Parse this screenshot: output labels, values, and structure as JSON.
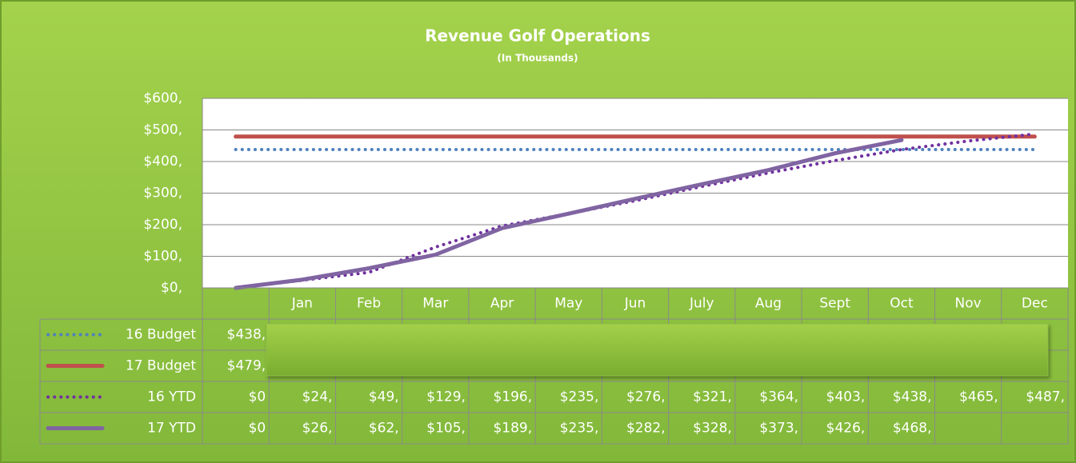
{
  "chart_data": {
    "type": "line",
    "title": "Revenue Golf Operations",
    "subtitle": "(In Thousands)",
    "categories": [
      null,
      "Jan",
      "Feb",
      "Mar",
      "Apr",
      "May",
      "Jun",
      "July",
      "Aug",
      "Sept",
      "Oct",
      "Nov",
      "Dec"
    ],
    "ylim": [
      0,
      600
    ],
    "yticks": [
      {
        "value": 0,
        "label": "$0,"
      },
      {
        "value": 100,
        "label": "$100,"
      },
      {
        "value": 200,
        "label": "$200,"
      },
      {
        "value": 300,
        "label": "$300,"
      },
      {
        "value": 400,
        "label": "$400,"
      },
      {
        "value": 500,
        "label": "$500,"
      },
      {
        "value": 600,
        "label": "$600,"
      }
    ],
    "grid": true,
    "series": [
      {
        "name": "16 Budget",
        "color": "#4f81bd",
        "style": "dotted",
        "values": [
          438,
          438,
          438,
          438,
          438,
          438,
          438,
          438,
          438,
          438,
          438,
          438,
          438
        ],
        "value_labels": [
          "$438,",
          null,
          null,
          null,
          null,
          null,
          null,
          null,
          null,
          null,
          null,
          null,
          null
        ]
      },
      {
        "name": "17 Budget",
        "color": "#c0504d",
        "style": "solid",
        "values": [
          479,
          479,
          479,
          479,
          479,
          479,
          479,
          479,
          479,
          479,
          479,
          479,
          479
        ],
        "value_labels": [
          "$479,",
          null,
          null,
          null,
          null,
          null,
          null,
          null,
          null,
          null,
          null,
          null,
          null
        ]
      },
      {
        "name": "16 YTD",
        "color": "#7030a0",
        "style": "dotted",
        "values": [
          0,
          24,
          49,
          129,
          196,
          235,
          276,
          321,
          364,
          403,
          438,
          465,
          487
        ],
        "value_labels": [
          "$0",
          "$24,",
          "$49,",
          "$129,",
          "$196,",
          "$235,",
          "$276,",
          "$321,",
          "$364,",
          "$403,",
          "$438,",
          "$465,",
          "$487,"
        ]
      },
      {
        "name": "17 YTD",
        "color": "#8064a2",
        "style": "solid",
        "values": [
          0,
          26,
          62,
          105,
          189,
          235,
          282,
          328,
          373,
          426,
          468,
          null,
          null
        ],
        "value_labels": [
          "$0",
          "$26,",
          "$62,",
          "$105,",
          "$189,",
          "$235,",
          "$282,",
          "$328,",
          "$373,",
          "$426,",
          "$468,",
          null,
          null
        ]
      }
    ]
  }
}
